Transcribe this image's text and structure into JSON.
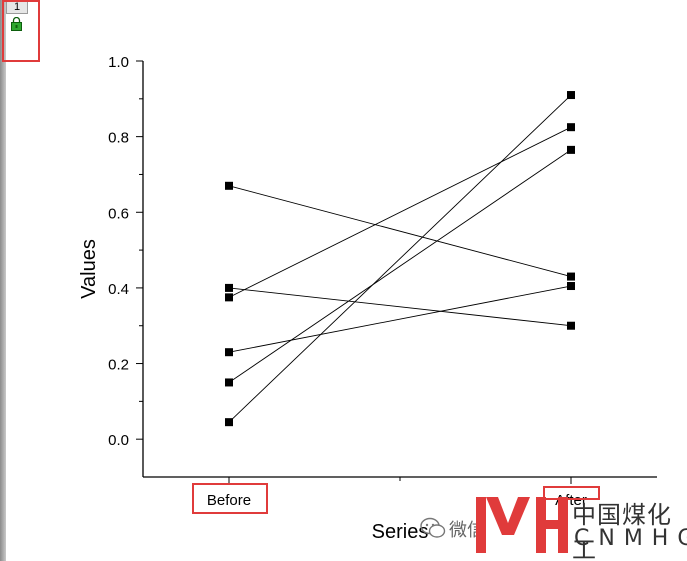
{
  "window": {
    "layer_tab": "1"
  },
  "chart_data": {
    "type": "line",
    "categories": [
      "Before",
      "After"
    ],
    "xlabel": "Series",
    "ylabel": "Values",
    "ylim": [
      -0.1,
      1.0
    ],
    "yticks": [
      "0.0",
      "0.2",
      "0.4",
      "0.6",
      "0.8",
      "1.0"
    ],
    "ytick_values": [
      0.0,
      0.2,
      0.4,
      0.6,
      0.8,
      1.0
    ],
    "series": [
      {
        "values": [
          0.67,
          0.43
        ]
      },
      {
        "values": [
          0.4,
          0.3
        ]
      },
      {
        "values": [
          0.375,
          0.825
        ]
      },
      {
        "values": [
          0.23,
          0.405
        ]
      },
      {
        "values": [
          0.15,
          0.765
        ]
      },
      {
        "values": [
          0.045,
          0.91
        ]
      }
    ],
    "grid": false,
    "marker": "square",
    "line_color": "#000000"
  },
  "watermark": {
    "wechat_text": "微信",
    "brand_cn": "中国煤化工",
    "brand_en": "CNMHG",
    "brand_color": "#e03b3b"
  }
}
